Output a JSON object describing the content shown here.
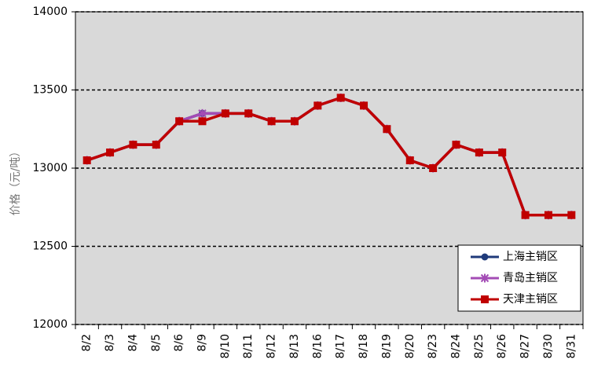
{
  "chart_data": {
    "type": "line",
    "ylabel": "价格（元/吨）",
    "categories": [
      "8/2",
      "8/3",
      "8/4",
      "8/5",
      "8/6",
      "8/9",
      "8/10",
      "8/11",
      "8/12",
      "8/13",
      "8/16",
      "8/17",
      "8/18",
      "8/19",
      "8/20",
      "8/23",
      "8/24",
      "8/25",
      "8/26",
      "8/27",
      "8/30",
      "8/31"
    ],
    "series": [
      {
        "name": "上海主销区",
        "color": "#1f3a7a",
        "marker": "circle",
        "values": [
          13050,
          13100,
          13150,
          13150,
          13300,
          13350,
          13350,
          13350,
          13300,
          13300,
          13400,
          13450,
          13400,
          13250,
          13050,
          13000,
          13150,
          13100,
          13100,
          12700,
          12700,
          12700
        ]
      },
      {
        "name": "青岛主销区",
        "color": "#a34cb5",
        "marker": "star",
        "values": [
          13050,
          13100,
          13150,
          13150,
          13300,
          13350,
          13350,
          13350,
          13300,
          13300,
          13400,
          13450,
          13400,
          13250,
          13050,
          13000,
          13150,
          13100,
          13100,
          12700,
          12700,
          12700
        ]
      },
      {
        "name": "天津主销区",
        "color": "#c00000",
        "marker": "square",
        "values": [
          13050,
          13100,
          13150,
          13150,
          13300,
          13300,
          13350,
          13350,
          13300,
          13300,
          13400,
          13450,
          13400,
          13250,
          13050,
          13000,
          13150,
          13100,
          13100,
          12700,
          12700,
          12700
        ]
      }
    ],
    "ylim": [
      12000,
      14000
    ],
    "yticks": [
      12000,
      12500,
      13000,
      13500,
      14000
    ],
    "grid": true,
    "legend": "lower right"
  }
}
